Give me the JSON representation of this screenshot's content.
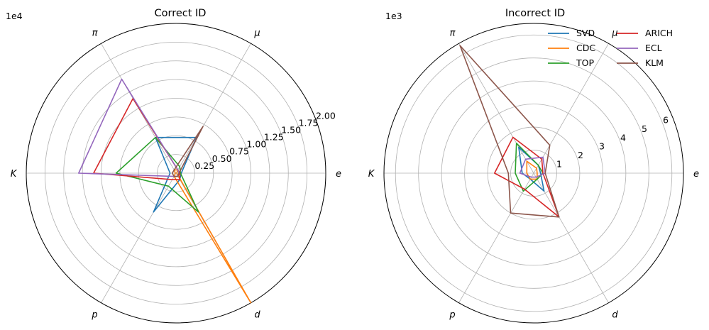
{
  "chart_data": [
    {
      "type": "radar",
      "title": "Correct ID",
      "scale_label": "1e4",
      "categories": [
        "e",
        "μ",
        "π",
        "K",
        "p",
        "d"
      ],
      "rmax": 2.0,
      "rticks": [
        0.25,
        0.5,
        0.75,
        1.0,
        1.25,
        1.5,
        1.75,
        2.0
      ],
      "rtick_labels": [
        "0.25",
        "0.50",
        "0.75",
        "1.00",
        "1.25",
        "1.50",
        "1.75",
        "2.00"
      ],
      "grid": true,
      "series": [
        {
          "name": "SVD",
          "color": "#1f77b4",
          "values": [
            0.07,
            0.55,
            0.55,
            0.08,
            0.6,
            0.1
          ]
        },
        {
          "name": "CDC",
          "color": "#ff7f0e",
          "values": [
            0.01,
            0.05,
            0.05,
            0.01,
            0.05,
            2.0
          ]
        },
        {
          "name": "TOP",
          "color": "#2ca02c",
          "values": [
            0.06,
            0.1,
            0.55,
            0.8,
            0.2,
            0.6
          ]
        },
        {
          "name": "ARICH",
          "color": "#d62728",
          "values": [
            0.05,
            0.05,
            1.15,
            1.1,
            0.1,
            0.1
          ]
        },
        {
          "name": "ECL",
          "color": "#9467bd",
          "values": [
            0.04,
            0.05,
            1.45,
            1.3,
            0.05,
            0.05
          ]
        },
        {
          "name": "KLM",
          "color": "#8c564b",
          "values": [
            0.04,
            0.72,
            0.05,
            0.05,
            0.05,
            0.05
          ]
        }
      ]
    },
    {
      "type": "radar",
      "title": "Incorrect ID",
      "scale_label": "1e3",
      "categories": [
        "e",
        "μ",
        "π",
        "K",
        "p",
        "d"
      ],
      "rmax": 6.5,
      "rticks": [
        1,
        2,
        3,
        4,
        5,
        6
      ],
      "rtick_labels": [
        "1",
        "2",
        "3",
        "4",
        "5",
        "6"
      ],
      "grid": true,
      "legend_position": "top-right",
      "series": [
        {
          "name": "SVD",
          "color": "#1f77b4",
          "values": [
            0.3,
            0.4,
            1.3,
            0.5,
            0.3,
            0.9
          ]
        },
        {
          "name": "CDC",
          "color": "#ff7f0e",
          "values": [
            0.15,
            0.25,
            0.6,
            0.3,
            0.3,
            0.3
          ]
        },
        {
          "name": "TOP",
          "color": "#2ca02c",
          "values": [
            0.4,
            0.4,
            1.5,
            0.8,
            0.9,
            0.3
          ]
        },
        {
          "name": "ARICH",
          "color": "#d62728",
          "values": [
            0.4,
            0.7,
            1.8,
            1.7,
            0.8,
            2.2
          ]
        },
        {
          "name": "ECL",
          "color": "#9467bd",
          "values": [
            0.5,
            0.8,
            0.7,
            0.6,
            0.2,
            0.2
          ]
        },
        {
          "name": "KLM",
          "color": "#8c564b",
          "values": [
            0.5,
            1.4,
            6.4,
            1.1,
            2.0,
            2.2
          ]
        }
      ]
    }
  ]
}
